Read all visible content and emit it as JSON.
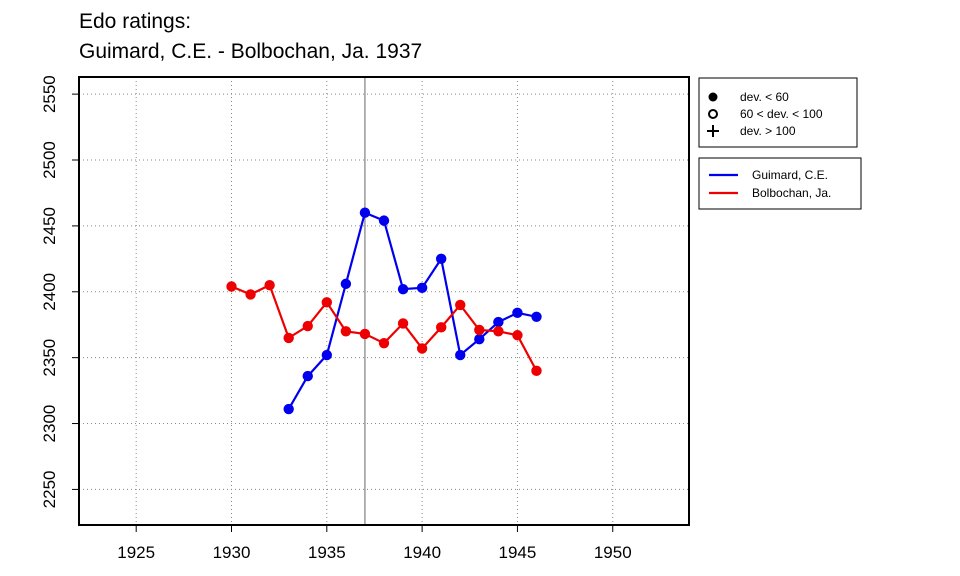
{
  "title": {
    "line1": "Edo ratings:",
    "line2": "Guimard, C.E. - Bolbochan, Ja. 1937"
  },
  "chart_data": {
    "type": "line",
    "xlim": [
      1922,
      1954
    ],
    "ylim": [
      2223,
      2563
    ],
    "x_ticks": [
      1925,
      1930,
      1935,
      1940,
      1945,
      1950
    ],
    "y_ticks": [
      2250,
      2300,
      2350,
      2400,
      2450,
      2500,
      2550
    ],
    "grid": true,
    "vline": 1937,
    "series": [
      {
        "name": "Guimard, C.E.",
        "color": "#0000ee",
        "x": [
          1933,
          1934,
          1935,
          1936,
          1937,
          1938,
          1939,
          1940,
          1941,
          1942,
          1943,
          1944,
          1945,
          1946
        ],
        "y": [
          2311,
          2336,
          2352,
          2406,
          2460,
          2454,
          2402,
          2403,
          2425,
          2352,
          2364,
          2377,
          2384,
          2381
        ]
      },
      {
        "name": "Bolbochan, Ja.",
        "color": "#ee0000",
        "x": [
          1930,
          1931,
          1932,
          1933,
          1934,
          1935,
          1936,
          1937,
          1938,
          1939,
          1940,
          1941,
          1942,
          1943,
          1944,
          1945,
          1946
        ],
        "y": [
          2404,
          2398,
          2405,
          2365,
          2374,
          2392,
          2370,
          2368,
          2361,
          2376,
          2357,
          2373,
          2390,
          2371,
          2370,
          2367,
          2340
        ]
      }
    ],
    "deviation_legend": [
      {
        "symbol": "filled-circle-icon",
        "label": "dev. < 60"
      },
      {
        "symbol": "open-circle-icon",
        "label": "60 < dev. < 100"
      },
      {
        "symbol": "plus-icon",
        "label": "dev. > 100"
      }
    ],
    "legend_position": "right"
  }
}
